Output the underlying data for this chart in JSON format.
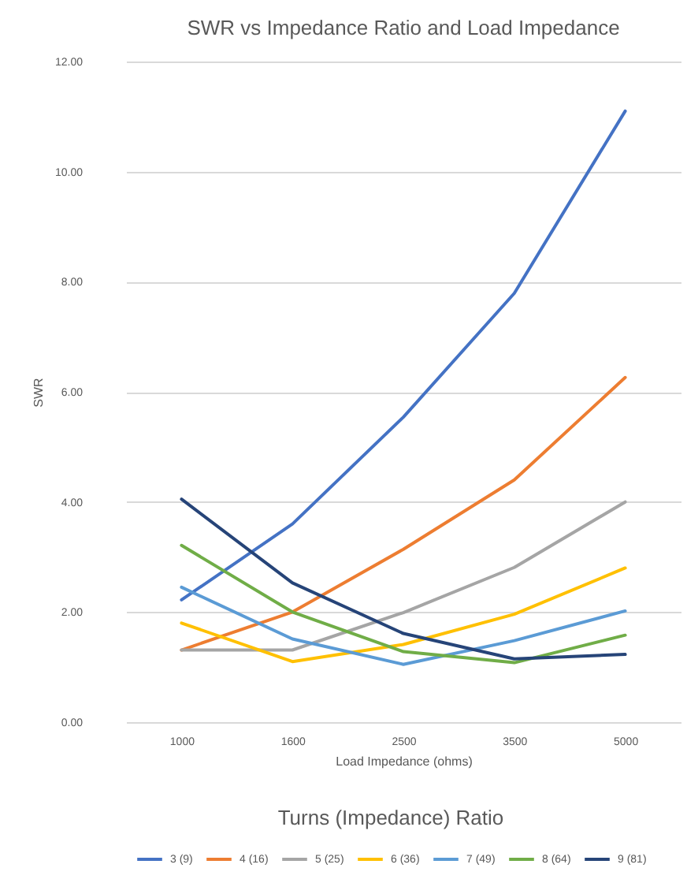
{
  "chart_data": {
    "type": "line",
    "title": "SWR vs Impedance Ratio and Load Impedance",
    "xlabel": "Load Impedance (ohms)",
    "ylabel": "SWR",
    "legend_title": "Turns (Impedance) Ratio",
    "categories": [
      "1000",
      "1600",
      "2500",
      "3500",
      "5000"
    ],
    "series": [
      {
        "name": "3 (9)",
        "color": "#4472c4",
        "values": [
          2.22,
          3.6,
          5.54,
          7.79,
          11.1
        ]
      },
      {
        "name": "4 (16)",
        "color": "#ed7d31",
        "values": [
          1.31,
          2.0,
          3.14,
          4.4,
          6.26
        ]
      },
      {
        "name": "5 (25)",
        "color": "#a5a5a5",
        "values": [
          1.31,
          1.31,
          1.99,
          2.81,
          4.0
        ]
      },
      {
        "name": "6 (36)",
        "color": "#ffc000",
        "values": [
          1.8,
          1.1,
          1.41,
          1.96,
          2.8
        ]
      },
      {
        "name": "7 (49)",
        "color": "#5b9bd5",
        "values": [
          2.45,
          1.51,
          1.05,
          1.48,
          2.02
        ]
      },
      {
        "name": "8 (64)",
        "color": "#70ad47",
        "values": [
          3.21,
          2.0,
          1.28,
          1.08,
          1.58
        ]
      },
      {
        "name": "9 (81)",
        "color": "#264478",
        "values": [
          4.05,
          2.53,
          1.61,
          1.15,
          1.23
        ]
      }
    ],
    "ylim": [
      0,
      12
    ],
    "yticks": [
      {
        "value": 0,
        "label": "0.00"
      },
      {
        "value": 2,
        "label": "2.00"
      },
      {
        "value": 4,
        "label": "4.00"
      },
      {
        "value": 6,
        "label": "6.00"
      },
      {
        "value": 8,
        "label": "8.00"
      },
      {
        "value": 10,
        "label": "10.00"
      },
      {
        "value": 12,
        "label": "12.00"
      }
    ],
    "grid": "y",
    "legend": "bottom",
    "marker": "none",
    "line_style": "solid"
  }
}
